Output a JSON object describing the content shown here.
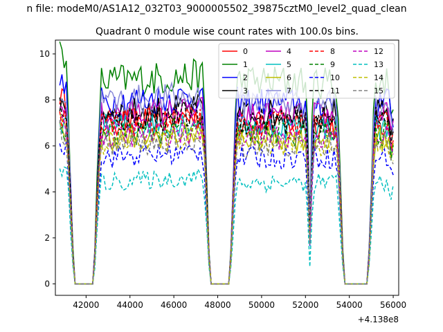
{
  "chart_data": {
    "type": "line",
    "suptitle": "n file: modeM0/AS1A12_032T03_9000005502_39875cztM0_level2_quad_clean",
    "title": "Quadrant 0 module wise count rates with 100.0s bins.",
    "xlabel": "",
    "ylabel": "",
    "x_offset_label": "+4.138e8",
    "xlim": [
      40600,
      56250
    ],
    "ylim": [
      -0.5,
      10.6
    ],
    "xticks": [
      42000,
      44000,
      46000,
      48000,
      50000,
      52000,
      54000,
      56000
    ],
    "yticks": [
      0,
      2,
      4,
      6,
      8,
      10
    ],
    "grid": false,
    "legend": {
      "placement": "top-right",
      "columns": 4
    },
    "gaps": [
      [
        41300,
        42500
      ],
      [
        47500,
        48700
      ],
      [
        53600,
        55000
      ]
    ],
    "dip": {
      "x": 52200,
      "depth": 0.3
    },
    "series": [
      {
        "name": "0",
        "color": "#ff0000",
        "dash": "solid",
        "level": 7.0,
        "start": 8.3
      },
      {
        "name": "1",
        "color": "#008000",
        "dash": "solid",
        "level": 8.8,
        "start": 10.1
      },
      {
        "name": "2",
        "color": "#0000ff",
        "dash": "solid",
        "level": 7.9,
        "start": 8.8
      },
      {
        "name": "3",
        "color": "#000000",
        "dash": "solid",
        "level": 7.4,
        "start": 8.0
      },
      {
        "name": "4",
        "color": "#bf00bf",
        "dash": "solid",
        "level": 7.3,
        "start": 7.8
      },
      {
        "name": "5",
        "color": "#00bfbf",
        "dash": "solid",
        "level": 6.8,
        "start": 7.2
      },
      {
        "name": "6",
        "color": "#bfbf00",
        "dash": "solid",
        "level": 6.3,
        "start": 7.0
      },
      {
        "name": "7",
        "color": "#8a8ad8",
        "dash": "solid",
        "level": 7.9,
        "start": 8.5
      },
      {
        "name": "8",
        "color": "#ff0000",
        "dash": "dashed",
        "level": 6.9,
        "start": 7.5
      },
      {
        "name": "9",
        "color": "#008000",
        "dash": "dashed",
        "level": 6.5,
        "start": 6.9
      },
      {
        "name": "10",
        "color": "#0000ff",
        "dash": "dashed",
        "level": 5.5,
        "start": 6.1
      },
      {
        "name": "11",
        "color": "#000000",
        "dash": "dashed",
        "level": 7.1,
        "start": 7.6
      },
      {
        "name": "12",
        "color": "#bf00bf",
        "dash": "dashed",
        "level": 6.4,
        "start": 6.8
      },
      {
        "name": "13",
        "color": "#00bfbf",
        "dash": "dashed",
        "level": 4.4,
        "start": 5.2
      },
      {
        "name": "14",
        "color": "#bfbf00",
        "dash": "dashed",
        "level": 6.1,
        "start": 6.6
      },
      {
        "name": "15",
        "color": "#808080",
        "dash": "dashed",
        "level": 6.0,
        "start": 6.7
      }
    ]
  }
}
